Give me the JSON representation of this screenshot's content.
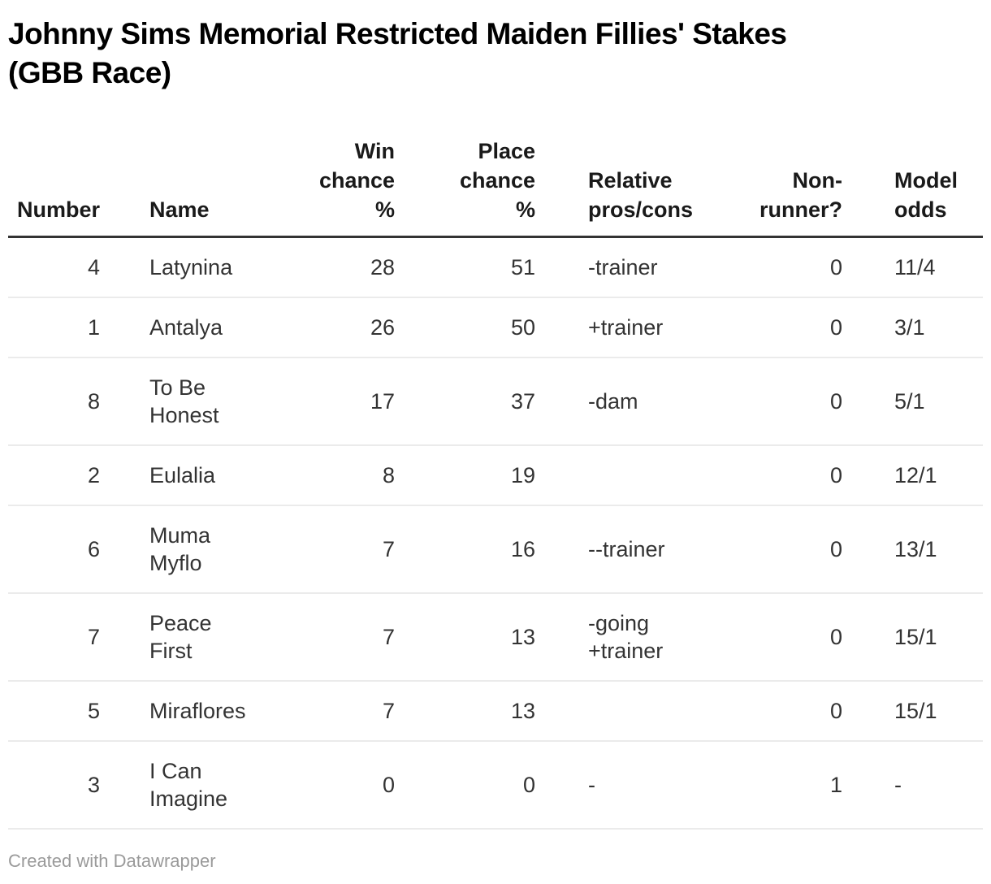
{
  "title": "Johnny Sims Memorial Restricted Maiden Fillies' Stakes\n(GBB Race)",
  "table": {
    "headers": [
      "Number",
      "Name",
      "Win\nchance\n%",
      "Place\nchance\n%",
      "Relative\npros/cons",
      "Non-\nrunner?",
      "Model\nodds"
    ],
    "column_keys": [
      "number",
      "name",
      "win-chance-pct",
      "place-chance-pct",
      "relative-pros-cons",
      "non-runner",
      "model-odds"
    ],
    "rows": [
      [
        "4",
        "Latynina",
        "28",
        "51",
        "-trainer",
        "0",
        "11/4"
      ],
      [
        "1",
        "Antalya",
        "26",
        "50",
        "+trainer",
        "0",
        "3/1"
      ],
      [
        "8",
        "To Be\nHonest",
        "17",
        "37",
        "-dam",
        "0",
        "5/1"
      ],
      [
        "2",
        "Eulalia",
        "8",
        "19",
        "",
        "0",
        "12/1"
      ],
      [
        "6",
        "Muma\nMyflo",
        "7",
        "16",
        "--trainer",
        "0",
        "13/1"
      ],
      [
        "7",
        "Peace\nFirst",
        "7",
        "13",
        "-going\n+trainer",
        "0",
        "15/1"
      ],
      [
        "5",
        "Miraflores",
        "7",
        "13",
        "",
        "0",
        "15/1"
      ],
      [
        "3",
        "I Can\nImagine",
        "0",
        "0",
        "-",
        "1",
        "-"
      ]
    ]
  },
  "footer": {
    "credit": "Created with Datawrapper"
  },
  "colors": {
    "title_text": "#000000",
    "header_text": "#1a1a1a",
    "body_text": "#333333",
    "header_rule": "#333333",
    "row_divider": "#ebebeb",
    "credit_text": "#9a9a9a",
    "background": "#ffffff"
  },
  "chart_data": {
    "type": "table",
    "title": "Johnny Sims Memorial Restricted Maiden Fillies' Stakes (GBB Race)",
    "columns": [
      "Number",
      "Name",
      "Win chance %",
      "Place chance %",
      "Relative pros/cons",
      "Non-runner?",
      "Model odds"
    ],
    "rows": [
      [
        4,
        "Latynina",
        28,
        51,
        "-trainer",
        0,
        "11/4"
      ],
      [
        1,
        "Antalya",
        26,
        50,
        "+trainer",
        0,
        "3/1"
      ],
      [
        8,
        "To Be Honest",
        17,
        37,
        "-dam",
        0,
        "5/1"
      ],
      [
        2,
        "Eulalia",
        8,
        19,
        "",
        0,
        "12/1"
      ],
      [
        6,
        "Muma Myflo",
        7,
        16,
        "--trainer",
        0,
        "13/1"
      ],
      [
        7,
        "Peace First",
        7,
        13,
        "-going +trainer",
        0,
        "15/1"
      ],
      [
        5,
        "Miraflores",
        7,
        13,
        "",
        0,
        "15/1"
      ],
      [
        3,
        "I Can Imagine",
        0,
        0,
        "-",
        1,
        "-"
      ]
    ],
    "layout_hints": {
      "alignment": [
        "right",
        "left",
        "right",
        "right",
        "left",
        "right",
        "left"
      ],
      "header_rule": true,
      "row_dividers": true,
      "footer_credit": "Created with Datawrapper"
    }
  }
}
